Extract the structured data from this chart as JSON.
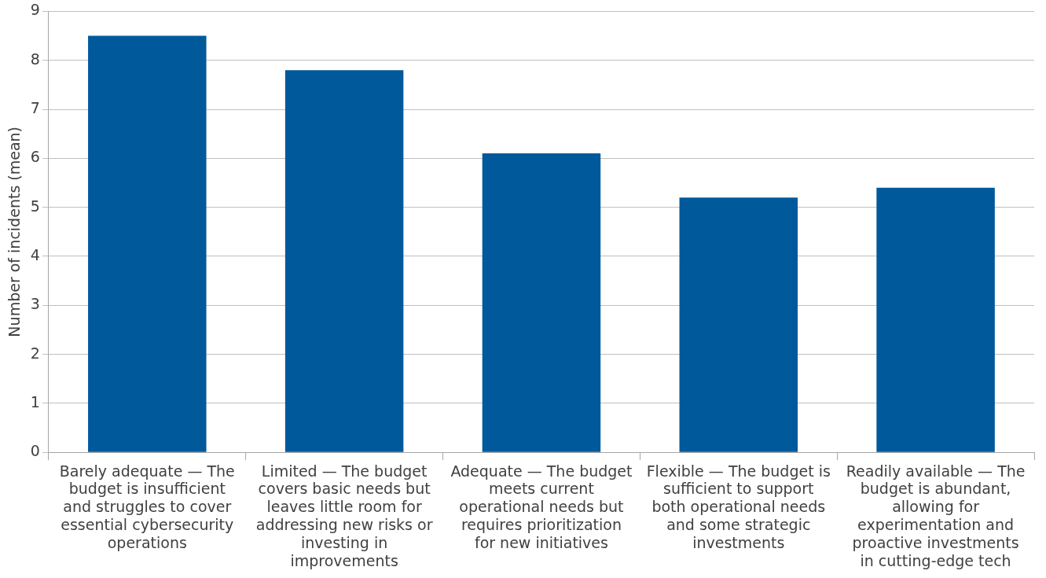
{
  "chart_data": {
    "type": "bar",
    "ylabel": "Number of incidents (mean)",
    "categories": [
      "Barely adequate — The budget is insufficient and struggles to cover essential cybersecurity operations",
      "Limited — The budget covers basic needs but leaves little room for addressing new risks or investing in improvements",
      "Adequate — The budget meets current operational needs but requires prioritization for new initiatives",
      "Flexible — The budget is sufficient to support both operational needs and some strategic investments",
      "Readily available — The budget is abundant, allowing for experimentation and proactive investments in cutting-edge tech"
    ],
    "values": [
      8.5,
      7.8,
      6.1,
      5.2,
      5.4
    ],
    "color": "#00599a",
    "ylim": [
      0,
      9
    ],
    "yticks": [
      0,
      1,
      2,
      3,
      4,
      5,
      6,
      7,
      8,
      9
    ],
    "grid": "y",
    "legend": false
  }
}
